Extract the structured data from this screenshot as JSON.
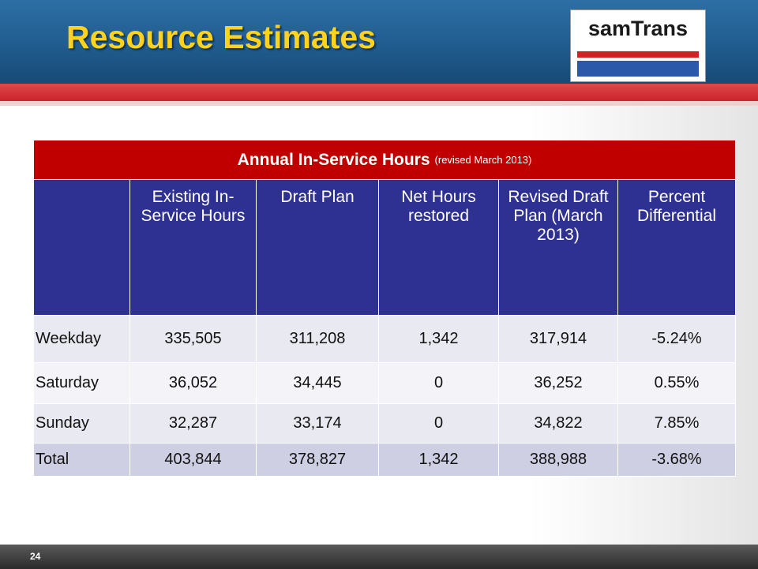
{
  "header": {
    "title": "Resource Estimates",
    "logo": "samTrans"
  },
  "table": {
    "caption": "Annual In-Service Hours",
    "caption_note": "(revised March 2013)",
    "columns": [
      "Existing In-Service Hours",
      "Draft Plan",
      "Net Hours restored",
      "Revised Draft Plan (March 2013)",
      "Percent Differential"
    ],
    "rows": [
      [
        "Weekday",
        "335,505",
        "311,208",
        "1,342",
        "317,914",
        "-5.24%"
      ],
      [
        "Saturday",
        "36,052",
        "34,445",
        "0",
        "36,252",
        "0.55%"
      ],
      [
        "Sunday",
        "32,287",
        "33,174",
        "0",
        "34,822",
        "7.85%"
      ],
      [
        "Total",
        "403,844",
        "378,827",
        "1,342",
        "388,988",
        "-3.68%"
      ]
    ]
  },
  "footer": {
    "page": "24"
  }
}
